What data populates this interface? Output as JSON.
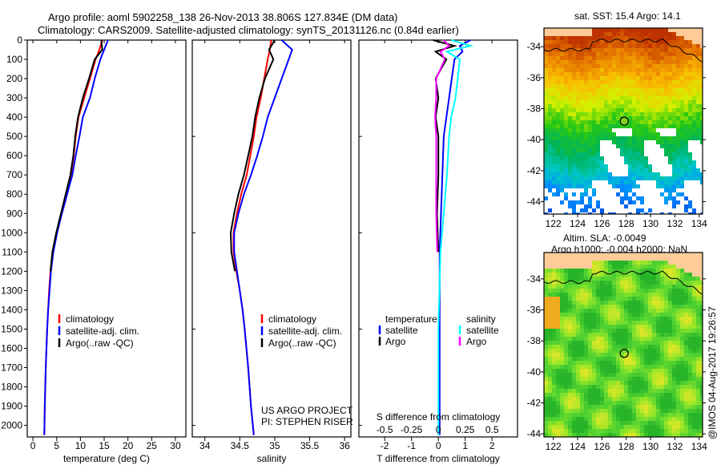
{
  "title_line1": "Argo profile: aoml 5902258_138 26-Nov-2013 38.806S 127.834E (DM data)",
  "title_line2": "Climatology: CARS2009. Satellite-adjusted climatology: synTS_20131126.nc (0.84d earlier)",
  "project_line1": "US ARGO PROJECT",
  "project_line2": "PI: STEPHEN RISER",
  "timestamp": "@IMOS 04-Aug-2017 19:26:57",
  "colors": {
    "climatology": "#ff0000",
    "satellite": "#0000ff",
    "argo": "#000000",
    "s_satellite": "#00ffff",
    "s_argo": "#ff00ff",
    "land": "#ffcc99"
  },
  "chart_data": [
    {
      "type": "line",
      "name": "temperature",
      "xlabel": "temperature (deg C)",
      "ylabel": "",
      "xlim": [
        -1.2,
        32.2
      ],
      "ylim": [
        2060,
        0
      ],
      "xticks": [
        0,
        5,
        10,
        15,
        20,
        25,
        30
      ],
      "yticks": [
        0,
        100,
        200,
        300,
        400,
        500,
        600,
        700,
        800,
        900,
        1000,
        1100,
        1200,
        1300,
        1400,
        1500,
        1600,
        1700,
        1800,
        1900,
        2000
      ],
      "legend": [
        "climatology",
        "satellite-adj. clim.",
        "Argo(..raw -QC)"
      ],
      "depth": [
        0,
        50,
        100,
        200,
        300,
        400,
        500,
        600,
        700,
        800,
        900,
        1000,
        1100,
        1200,
        1300,
        1400,
        1500,
        1700,
        1900,
        2050
      ],
      "series": [
        {
          "name": "climatology",
          "values": [
            14.6,
            14.0,
            13.2,
            12.0,
            10.8,
            9.6,
            9.0,
            8.6,
            8.0,
            7.0,
            6.0,
            5.0,
            4.2,
            3.7,
            3.4,
            3.2,
            3.0,
            2.7,
            2.5,
            2.4
          ]
        },
        {
          "name": "satellite-adj. clim.",
          "values": [
            15.8,
            15.0,
            14.2,
            13.0,
            12.0,
            10.5,
            9.8,
            9.0,
            8.3,
            7.2,
            6.1,
            5.1,
            4.3,
            3.8,
            3.5,
            3.2,
            3.0,
            2.7,
            2.5,
            2.4
          ]
        },
        {
          "name": "Argo(..raw -QC)",
          "values": [
            14.4,
            14.6,
            13.0,
            11.8,
            10.5,
            9.5,
            8.9,
            8.5,
            7.9,
            6.9,
            5.9,
            4.9,
            4.1,
            3.7,
            null,
            null,
            null,
            null,
            null,
            null
          ]
        }
      ]
    },
    {
      "type": "line",
      "name": "salinity",
      "xlabel": "salinity",
      "xlim": [
        33.82,
        36.09
      ],
      "ylim": [
        2060,
        0
      ],
      "xticks": [
        34,
        34.5,
        35,
        35.5,
        36
      ],
      "legend": [
        "climatology",
        "satellite-adj. clim.",
        "Argo(..raw -QC)"
      ],
      "depth": [
        0,
        50,
        100,
        200,
        300,
        400,
        500,
        600,
        700,
        800,
        900,
        1000,
        1100,
        1200,
        1300,
        1400,
        1500,
        1700,
        1900,
        2050
      ],
      "series": [
        {
          "name": "climatology",
          "values": [
            34.95,
            34.93,
            34.9,
            34.85,
            34.8,
            34.74,
            34.7,
            34.65,
            34.6,
            34.52,
            34.46,
            34.41,
            34.41,
            34.45,
            34.5,
            34.54,
            34.57,
            34.62,
            34.66,
            34.7
          ]
        },
        {
          "name": "satellite-adj. clim.",
          "values": [
            35.1,
            35.25,
            35.2,
            35.1,
            35.0,
            34.9,
            34.83,
            34.75,
            34.66,
            34.56,
            34.48,
            34.42,
            34.42,
            34.46,
            34.5,
            34.54,
            34.57,
            34.62,
            34.66,
            34.7
          ]
        },
        {
          "name": "Argo(..raw -QC)",
          "values": [
            35.0,
            34.92,
            34.98,
            34.86,
            34.78,
            34.72,
            34.68,
            34.62,
            34.56,
            34.48,
            34.42,
            34.37,
            34.38,
            34.43,
            null,
            null,
            null,
            null,
            null,
            null
          ]
        }
      ]
    },
    {
      "type": "line",
      "name": "difference",
      "xlabel": "T difference from climatology",
      "x2label": "S difference from climatology",
      "xlim": [
        -2.96,
        2.95
      ],
      "x2lim": [
        -0.74,
        0.74
      ],
      "ylim": [
        2060,
        0
      ],
      "xticks": [
        -2,
        -1,
        0,
        1,
        2
      ],
      "x2ticks": [
        "-0.5",
        "-0.25",
        "0",
        "0.25",
        "0.5"
      ],
      "x2tick_values": [
        -0.5,
        -0.25,
        0,
        0.25,
        0.5
      ],
      "legend_t_title": "temperature",
      "legend_s_title": "salinity",
      "legend_t": [
        "satellite",
        "Argo"
      ],
      "legend_s": [
        "satellite",
        "Argo"
      ],
      "depth": [
        0,
        30,
        60,
        100,
        200,
        300,
        400,
        500,
        700,
        900,
        1100,
        1300,
        1500,
        1700,
        2050
      ],
      "series": [
        {
          "name": "T satellite",
          "values": [
            1.2,
            0.8,
            0.9,
            0.6,
            0.5,
            0.4,
            0.3,
            0.2,
            0.15,
            0.1,
            0.05,
            0.05,
            0.05,
            0.05,
            0.05
          ]
        },
        {
          "name": "T Argo",
          "values": [
            -0.2,
            0.6,
            -0.1,
            0.3,
            -0.1,
            0.0,
            -0.1,
            0.0,
            0.0,
            -0.05,
            0.0,
            null,
            null,
            null,
            null
          ]
        },
        {
          "name": "S satellite",
          "values": [
            0.12,
            0.3,
            0.08,
            0.2,
            0.18,
            0.16,
            0.12,
            0.1,
            0.08,
            0.05,
            0.02,
            0.01,
            0.0,
            0.0,
            0.0
          ]
        },
        {
          "name": "S Argo",
          "values": [
            0.05,
            0.1,
            0.02,
            0.06,
            -0.02,
            -0.02,
            -0.03,
            -0.02,
            -0.02,
            -0.02,
            -0.01,
            null,
            null,
            null,
            null
          ]
        }
      ]
    }
  ],
  "map_sst": {
    "title": "sat. SST: 15.4 Argo: 14.1",
    "xticks": [
      "122",
      "124",
      "126",
      "128",
      "130",
      "132",
      "134"
    ],
    "yticks": [
      "-34",
      "-36",
      "-38",
      "-40",
      "-42",
      "-44"
    ],
    "lon": [
      121.23,
      134.28
    ],
    "lat": [
      -32.8,
      -44.8
    ],
    "argo_position": [
      127.834,
      -38.806
    ]
  },
  "map_sla": {
    "title_line1": "Altim. SLA: -0.0049",
    "title_line2": "Argo h1000: -0.004 h2000: NaN",
    "xticks": [
      "122",
      "124",
      "126",
      "128",
      "130",
      "132",
      "134"
    ],
    "yticks": [
      "-34",
      "-36",
      "-38",
      "-40",
      "-42",
      "-44"
    ],
    "lon": [
      121.23,
      134.28
    ],
    "lat": [
      -32.3,
      -44.2
    ],
    "argo_position": [
      127.834,
      -38.806
    ]
  }
}
